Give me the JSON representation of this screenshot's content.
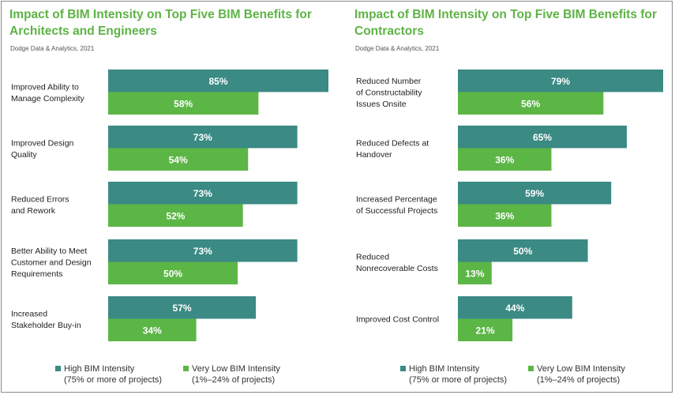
{
  "colors": {
    "high": "#3b8a84",
    "low": "#5cb646",
    "title": "#5eb345"
  },
  "legend": {
    "high": {
      "label": "High BIM Intensity",
      "sub": "(75% or more of projects)"
    },
    "low": {
      "label": "Very Low BIM Intensity",
      "sub": "(1%–24% of projects)"
    }
  },
  "chart_data": [
    {
      "type": "bar",
      "orientation": "horizontal",
      "title": "Impact of BIM Intensity on Top Five BIM Benefits for Architects and Engineers",
      "source": "Dodge Data & Analytics, 2021",
      "categories": [
        "Improved Ability to Manage Complexity",
        "Improved Design Quality",
        "Reduced Errors and Rework",
        "Better Ability to Meet Customer and Design Requirements",
        "Increased Stakeholder Buy-in"
      ],
      "category_lines": [
        [
          "Improved Ability to",
          "Manage Complexity"
        ],
        [
          "Improved Design",
          "Quality"
        ],
        [
          "Reduced Errors",
          "and Rework"
        ],
        [
          "Better Ability to Meet",
          "Customer and Design",
          "Requirements"
        ],
        [
          "Increased",
          "Stakeholder Buy-in"
        ]
      ],
      "series": [
        {
          "name": "High BIM Intensity (75% or more of projects)",
          "values": [
            85,
            73,
            73,
            73,
            57
          ]
        },
        {
          "name": "Very Low BIM Intensity (1%–24% of projects)",
          "values": [
            58,
            54,
            52,
            50,
            34
          ]
        }
      ],
      "value_suffix": "%",
      "xlim": [
        0,
        85
      ]
    },
    {
      "type": "bar",
      "orientation": "horizontal",
      "title": "Impact of BIM Intensity on Top Five BIM Benefits for Contractors",
      "source": "Dodge Data & Analytics, 2021",
      "categories": [
        "Reduced Number of Constructability Issues Onsite",
        "Reduced Defects at Handover",
        "Increased Percentage of Successful Projects",
        "Reduced Nonrecoverable Costs",
        "Improved Cost Control"
      ],
      "category_lines": [
        [
          "Reduced Number",
          "of Constructability",
          "Issues Onsite"
        ],
        [
          "Reduced Defects at",
          "Handover"
        ],
        [
          "Increased Percentage",
          "of Successful Projects"
        ],
        [
          "Reduced",
          "Nonrecoverable Costs"
        ],
        [
          "Improved Cost Control"
        ]
      ],
      "series": [
        {
          "name": "High BIM Intensity (75% or more of projects)",
          "values": [
            79,
            65,
            59,
            50,
            44
          ]
        },
        {
          "name": "Very Low BIM Intensity (1%–24% of projects)",
          "values": [
            56,
            36,
            36,
            13,
            21
          ]
        }
      ],
      "value_suffix": "%",
      "xlim": [
        0,
        79
      ]
    }
  ]
}
